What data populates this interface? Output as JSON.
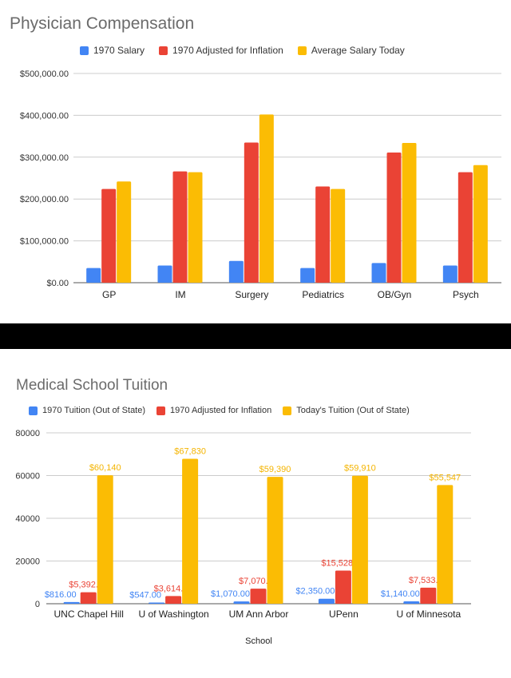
{
  "charts": {
    "compensation": {
      "title": "Physician Compensation",
      "legend": [
        {
          "name": "1970 Salary",
          "color": "#4285f4"
        },
        {
          "name": "1970 Adjusted for Inflation",
          "color": "#ea4335"
        },
        {
          "name": "Average Salary Today",
          "color": "#fbbc04"
        }
      ]
    },
    "tuition": {
      "title": "Medical School Tuition",
      "xlabel": "School",
      "legend": [
        {
          "name": "1970 Tuition (Out of State)",
          "color": "#4285f4"
        },
        {
          "name": "1970 Adjusted for Inflation",
          "color": "#ea4335"
        },
        {
          "name": "Today's Tuition (Out of State)",
          "color": "#fbbc04"
        }
      ]
    }
  },
  "chart_data": [
    {
      "type": "bar",
      "title": "Physician Compensation",
      "categories": [
        "GP",
        "IM",
        "Surgery",
        "Pediatrics",
        "OB/Gyn",
        "Psych"
      ],
      "yticks": [
        "$0.00",
        "$100,000.00",
        "$200,000.00",
        "$300,000.00",
        "$400,000.00",
        "$500,000.00"
      ],
      "ylim": [
        0,
        500000
      ],
      "grid": true,
      "legend_position": "top",
      "series": [
        {
          "name": "1970 Salary",
          "color": "#4285f4",
          "values": [
            35000,
            41000,
            52000,
            35000,
            47000,
            41000
          ]
        },
        {
          "name": "1970 Adjusted for Inflation",
          "color": "#ea4335",
          "values": [
            224000,
            266000,
            335000,
            230000,
            311000,
            264000
          ]
        },
        {
          "name": "Average Salary Today",
          "color": "#fbbc04",
          "values": [
            242000,
            264000,
            402000,
            224000,
            334000,
            281000
          ]
        }
      ]
    },
    {
      "type": "bar",
      "title": "Medical School Tuition",
      "xlabel": "School",
      "categories": [
        "UNC Chapel Hill",
        "U of Washington",
        "UM Ann Arbor",
        "UPenn",
        "U of Minnesota"
      ],
      "yticks": [
        "0",
        "20000",
        "40000",
        "60000",
        "80000"
      ],
      "ylim": [
        0,
        80000
      ],
      "grid": true,
      "legend_position": "top",
      "series": [
        {
          "name": "1970 Tuition (Out of State)",
          "color": "#4285f4",
          "values": [
            816,
            547,
            1070,
            2350,
            1140
          ],
          "labels": [
            "$816.00",
            "$547.00",
            "$1,070.00",
            "$2,350.00",
            "$1,140.00"
          ]
        },
        {
          "name": "1970 Adjusted for Inflation",
          "color": "#ea4335",
          "values": [
            5392.1,
            3614.56,
            7070.52,
            15528.72,
            7533.08
          ],
          "labels": [
            "$5,392.10",
            "$3,614.56",
            "$7,070.52",
            "$15,528.72",
            "$7,533.08"
          ]
        },
        {
          "name": "Today's Tuition (Out of State)",
          "color": "#fbbc04",
          "values": [
            60140,
            67830,
            59390,
            59910,
            55547
          ],
          "labels": [
            "$60,140",
            "$67,830",
            "$59,390",
            "$59,910",
            "$55,547"
          ]
        }
      ]
    }
  ]
}
